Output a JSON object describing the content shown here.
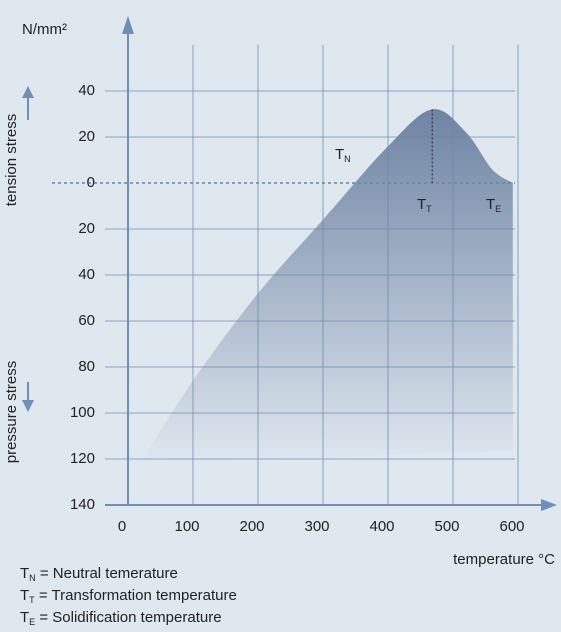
{
  "chart_data": {
    "type": "area",
    "y_unit": "N/mm²",
    "tension_label": "tension stress",
    "pressure_label": "pressure stress",
    "x_label": "temperature °C",
    "x": [
      23,
      100,
      200,
      300,
      400,
      468,
      520,
      560,
      592
    ],
    "values": [
      -120,
      -86,
      -48,
      -16,
      16,
      32,
      22,
      6,
      0
    ],
    "color": "#6e84a3",
    "xlim": [
      0,
      650
    ],
    "xticks": [
      0,
      100,
      200,
      300,
      400,
      500,
      600
    ],
    "ylim": [
      -140,
      72
    ],
    "yticks": [
      {
        "value": 40,
        "label": "40"
      },
      {
        "value": 20,
        "label": "20"
      },
      0,
      {
        "value": -20,
        "label": "20"
      },
      {
        "value": -40,
        "label": "40"
      },
      {
        "value": -60,
        "label": "60"
      },
      {
        "value": -80,
        "label": "80"
      },
      {
        "value": -100,
        "label": "100"
      },
      {
        "value": -120,
        "label": "120"
      },
      {
        "value": -140,
        "label": "140"
      }
    ],
    "grid": true,
    "annotations": [
      {
        "main": "T",
        "sub": "N"
      },
      {
        "main": "T",
        "sub": "T"
      },
      {
        "main": "T",
        "sub": "E"
      }
    ],
    "legend": [
      {
        "main": "T",
        "sub": "N",
        "text": " = Neutral temerature"
      },
      {
        "main": "T",
        "sub": "T",
        "text": " = Transformation temperature"
      },
      {
        "main": "T",
        "sub": "E",
        "text": " = Solidification temperature"
      }
    ]
  }
}
